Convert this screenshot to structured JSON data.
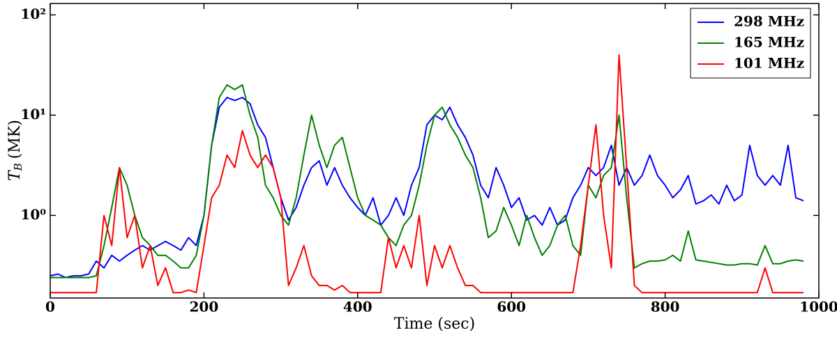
{
  "chart_data": {
    "type": "line",
    "xlabel": "Time (sec)",
    "ylabel": [
      "T",
      "B",
      "(MK)"
    ],
    "log_y": true,
    "legend": "upper right",
    "xlim": [
      0,
      1000
    ],
    "xticks": [
      0,
      200,
      400,
      600,
      800,
      1000
    ],
    "ylim": [
      0.15,
      130
    ],
    "yticks": [
      {
        "value": 1,
        "label": "10⁰"
      },
      {
        "value": 10,
        "label": "10¹"
      },
      {
        "value": 100,
        "label": "10²"
      }
    ],
    "x": [
      0,
      10,
      20,
      30,
      40,
      50,
      60,
      70,
      80,
      90,
      100,
      110,
      120,
      130,
      140,
      150,
      160,
      170,
      180,
      190,
      200,
      210,
      220,
      230,
      240,
      250,
      260,
      270,
      280,
      290,
      300,
      310,
      320,
      330,
      340,
      350,
      360,
      370,
      380,
      390,
      400,
      410,
      420,
      430,
      440,
      450,
      460,
      470,
      480,
      490,
      500,
      510,
      520,
      530,
      540,
      550,
      560,
      570,
      580,
      590,
      600,
      610,
      620,
      630,
      640,
      650,
      660,
      670,
      680,
      690,
      700,
      710,
      720,
      730,
      740,
      750,
      760,
      770,
      780,
      790,
      800,
      810,
      820,
      830,
      840,
      850,
      860,
      870,
      880,
      890,
      900,
      910,
      920,
      930,
      940,
      950,
      960,
      970,
      980
    ],
    "series": [
      {
        "name": "298 MHz",
        "color": "#0000ff",
        "values": [
          0.25,
          0.26,
          0.24,
          0.25,
          0.25,
          0.26,
          0.35,
          0.3,
          0.4,
          0.35,
          0.4,
          0.45,
          0.5,
          0.45,
          0.5,
          0.55,
          0.5,
          0.45,
          0.6,
          0.5,
          1,
          5,
          12,
          15,
          14,
          15,
          13,
          8,
          6,
          3,
          1.5,
          0.9,
          1.2,
          2,
          3,
          3.5,
          2,
          3,
          2,
          1.5,
          1.2,
          1,
          1.5,
          0.8,
          1,
          1.5,
          1,
          2,
          3,
          8,
          10,
          9,
          12,
          8,
          6,
          4,
          2,
          1.5,
          3,
          2,
          1.2,
          1.5,
          0.9,
          1,
          0.8,
          1.2,
          0.8,
          0.9,
          1.5,
          2,
          3,
          2.5,
          3,
          5,
          2,
          3,
          2,
          2.5,
          4,
          2.5,
          2,
          1.5,
          1.8,
          2.5,
          1.3,
          1.4,
          1.6,
          1.3,
          2,
          1.4,
          1.6,
          5,
          2.5,
          2,
          2.5,
          2,
          5,
          1.5,
          1.4
        ]
      },
      {
        "name": "165 MHz",
        "color": "#008000",
        "values": [
          0.24,
          0.24,
          0.24,
          0.24,
          0.24,
          0.24,
          0.25,
          0.5,
          1.2,
          3,
          2,
          1,
          0.6,
          0.5,
          0.4,
          0.4,
          0.35,
          0.3,
          0.3,
          0.4,
          1,
          5,
          15,
          20,
          18,
          20,
          10,
          6,
          2,
          1.5,
          1,
          0.8,
          1.5,
          4,
          10,
          5,
          3,
          5,
          6,
          3,
          1.5,
          1,
          0.9,
          0.8,
          0.6,
          0.5,
          0.8,
          1,
          2,
          5,
          10,
          12,
          8,
          6,
          4,
          3,
          1.5,
          0.6,
          0.7,
          1.2,
          0.8,
          0.5,
          1,
          0.6,
          0.4,
          0.5,
          0.8,
          1,
          0.5,
          0.4,
          2,
          1.5,
          2.5,
          3,
          10,
          1.5,
          0.3,
          0.33,
          0.35,
          0.35,
          0.36,
          0.4,
          0.35,
          0.7,
          0.36,
          0.35,
          0.34,
          0.33,
          0.32,
          0.32,
          0.33,
          0.33,
          0.32,
          0.5,
          0.33,
          0.33,
          0.35,
          0.36,
          0.35
        ]
      },
      {
        "name": "101 MHz",
        "color": "#ff0000",
        "values": [
          0.17,
          0.17,
          0.17,
          0.17,
          0.17,
          0.17,
          0.17,
          1,
          0.5,
          3,
          0.6,
          1,
          0.3,
          0.5,
          0.2,
          0.3,
          0.17,
          0.17,
          0.18,
          0.17,
          0.5,
          1.5,
          2,
          4,
          3,
          7,
          4,
          3,
          4,
          3,
          1.5,
          0.2,
          0.3,
          0.5,
          0.25,
          0.2,
          0.2,
          0.18,
          0.2,
          0.17,
          0.17,
          0.17,
          0.17,
          0.17,
          0.6,
          0.3,
          0.5,
          0.3,
          1,
          0.2,
          0.5,
          0.3,
          0.5,
          0.3,
          0.2,
          0.2,
          0.17,
          0.17,
          0.17,
          0.17,
          0.17,
          0.17,
          0.17,
          0.17,
          0.17,
          0.17,
          0.17,
          0.17,
          0.17,
          0.5,
          2,
          8,
          1,
          0.3,
          40,
          3,
          0.2,
          0.17,
          0.17,
          0.17,
          0.17,
          0.17,
          0.17,
          0.17,
          0.17,
          0.17,
          0.17,
          0.17,
          0.17,
          0.17,
          0.17,
          0.17,
          0.17,
          0.3,
          0.17,
          0.17,
          0.17,
          0.17,
          0.17
        ]
      }
    ]
  }
}
